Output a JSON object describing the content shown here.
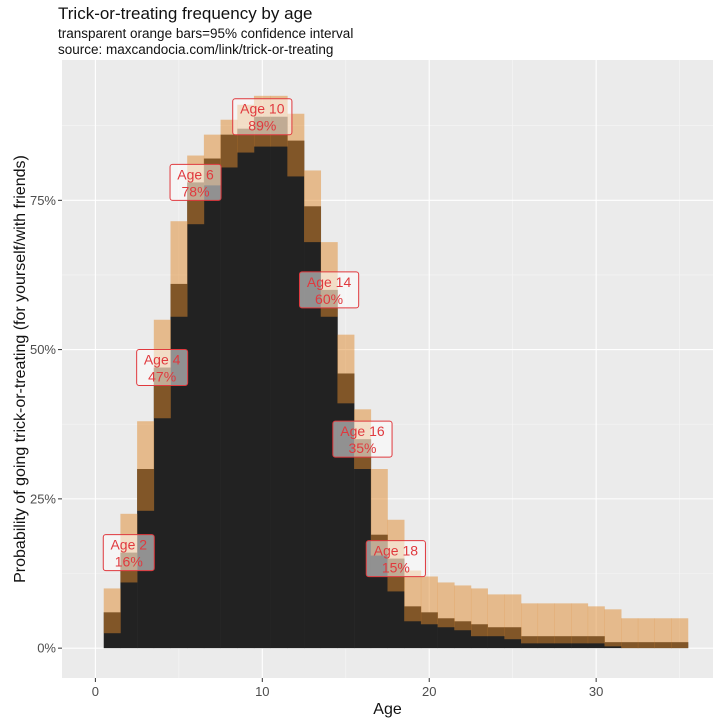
{
  "chart_data": {
    "type": "bar",
    "title": "Trick-or-treating frequency by age",
    "subtitle_lines": [
      "transparent orange bars=95% confidence interval",
      "source: maxcandocia.com/link/trick-or-treating"
    ],
    "xlabel": "Age",
    "ylabel": "Probability of going trick-or-treating (for yourself/with friends)",
    "xlim": [
      -2,
      37
    ],
    "ylim": [
      -0.05,
      0.985
    ],
    "x_ticks": [
      0,
      10,
      20,
      30
    ],
    "y_ticks": [
      0,
      0.25,
      0.5,
      0.75
    ],
    "y_tick_labels": [
      "0%",
      "25%",
      "50%",
      "75%"
    ],
    "grid": true,
    "series": [
      {
        "name": "estimate",
        "color": "#222222"
      },
      {
        "name": "95% confidence interval",
        "color": "#e08a2e"
      }
    ],
    "ages": [
      1,
      2,
      3,
      4,
      5,
      6,
      7,
      8,
      9,
      10,
      11,
      12,
      13,
      14,
      15,
      16,
      17,
      18,
      19,
      20,
      21,
      22,
      23,
      24,
      25,
      26,
      27,
      28,
      29,
      30,
      31,
      32,
      33,
      34,
      35
    ],
    "values": [
      0.06,
      0.16,
      0.3,
      0.47,
      0.61,
      0.78,
      0.82,
      0.86,
      0.87,
      0.89,
      0.89,
      0.85,
      0.74,
      0.6,
      0.46,
      0.35,
      0.19,
      0.15,
      0.07,
      0.06,
      0.05,
      0.045,
      0.04,
      0.035,
      0.035,
      0.02,
      0.02,
      0.02,
      0.02,
      0.02,
      0.01,
      0.01,
      0.01,
      0.01,
      0.01
    ],
    "ci_low": [
      0.025,
      0.11,
      0.23,
      0.385,
      0.555,
      0.71,
      0.775,
      0.805,
      0.83,
      0.84,
      0.84,
      0.79,
      0.68,
      0.555,
      0.41,
      0.3,
      0.155,
      0.095,
      0.045,
      0.04,
      0.035,
      0.03,
      0.02,
      0.02,
      0.015,
      0.008,
      0.008,
      0.008,
      0.008,
      0.008,
      0.003,
      0.0,
      0.0,
      0.0,
      0.0
    ],
    "ci_high": [
      0.1,
      0.225,
      0.38,
      0.55,
      0.715,
      0.825,
      0.86,
      0.885,
      0.91,
      0.925,
      0.925,
      0.895,
      0.8,
      0.68,
      0.525,
      0.4,
      0.3,
      0.215,
      0.13,
      0.12,
      0.11,
      0.105,
      0.1,
      0.09,
      0.09,
      0.075,
      0.075,
      0.075,
      0.075,
      0.07,
      0.065,
      0.05,
      0.05,
      0.05,
      0.05
    ],
    "annotations": [
      {
        "age": 2,
        "line1": "Age 2",
        "line2": "16%"
      },
      {
        "age": 4,
        "line1": "Age 4",
        "line2": "47%"
      },
      {
        "age": 6,
        "line1": "Age 6",
        "line2": "78%"
      },
      {
        "age": 10,
        "line1": "Age 10",
        "line2": "89%"
      },
      {
        "age": 14,
        "line1": "Age 14",
        "line2": "60%"
      },
      {
        "age": 16,
        "line1": "Age 16",
        "line2": "35%"
      },
      {
        "age": 18,
        "line1": "Age 18",
        "line2": "15%"
      }
    ],
    "annotation_color": "#e0393e"
  }
}
